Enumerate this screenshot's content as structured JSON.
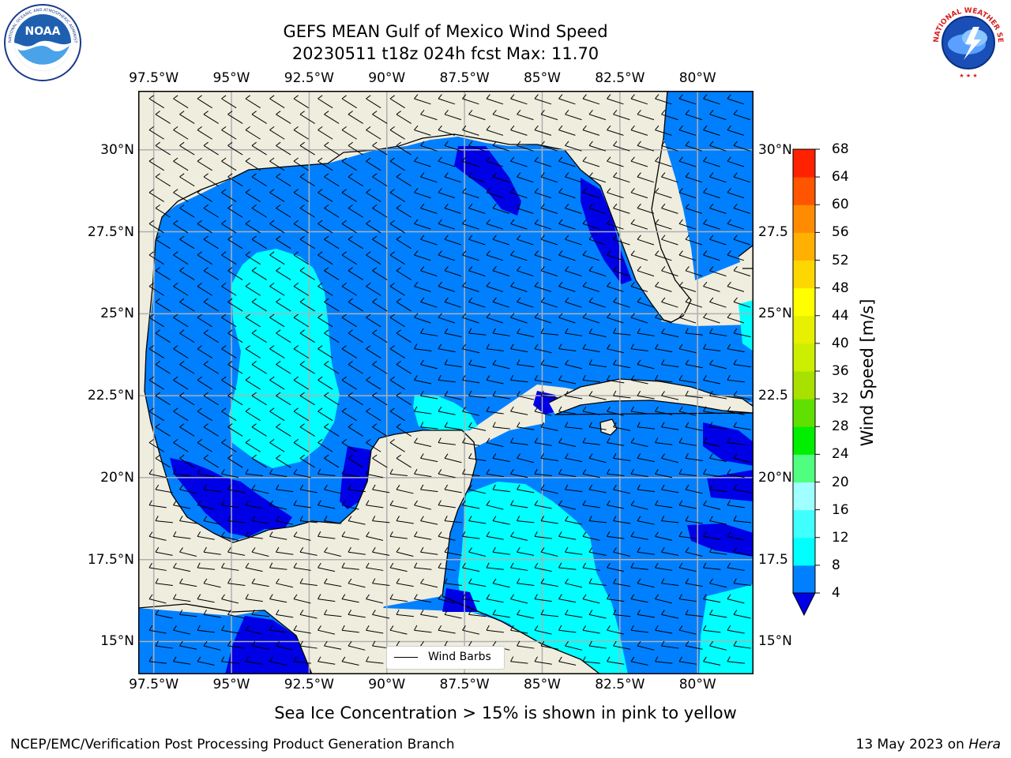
{
  "title": {
    "line1": "GEFS MEAN Gulf of Mexico Wind Speed",
    "line2": "20230511 t18z 024h fcst   Max: 11.70"
  },
  "logos": {
    "left": "noaa-logo",
    "left_text": "NOAA",
    "left_ring_text": "NATIONAL OCEANIC AND ATMOSPHERIC ADMINISTRATION · U.S. DEPARTMENT OF COMMERCE",
    "right": "national-weather-service-logo",
    "right_ring_text": "NATIONAL WEATHER SERVICE"
  },
  "map": {
    "region": "Gulf of Mexico",
    "extent": {
      "lon": [
        -98.0,
        -78.2
      ],
      "lat": [
        14.0,
        31.8
      ]
    },
    "lon_ticks": [
      {
        "lon": -97.5,
        "label": "97.5°W"
      },
      {
        "lon": -95.0,
        "label": "95°W"
      },
      {
        "lon": -92.5,
        "label": "92.5°W"
      },
      {
        "lon": -90.0,
        "label": "90°W"
      },
      {
        "lon": -87.5,
        "label": "87.5°W"
      },
      {
        "lon": -85.0,
        "label": "85°W"
      },
      {
        "lon": -82.5,
        "label": "82.5°W"
      },
      {
        "lon": -80.0,
        "label": "80°W"
      }
    ],
    "lat_ticks_left": [
      {
        "lat": 30.0,
        "label": "30°N"
      },
      {
        "lat": 27.5,
        "label": "27.5°N"
      },
      {
        "lat": 25.0,
        "label": "25°N"
      },
      {
        "lat": 22.5,
        "label": "22.5°N"
      },
      {
        "lat": 20.0,
        "label": "20°N"
      },
      {
        "lat": 17.5,
        "label": "17.5°N"
      },
      {
        "lat": 15.0,
        "label": "15°N"
      }
    ],
    "lat_ticks_right": [
      {
        "lat": 30.0,
        "label": "30°N"
      },
      {
        "lat": 27.5,
        "label": "27.5"
      },
      {
        "lat": 25.0,
        "label": "25°N"
      },
      {
        "lat": 22.5,
        "label": "22.5"
      },
      {
        "lat": 20.0,
        "label": "20°N"
      },
      {
        "lat": 17.5,
        "label": "17.5"
      },
      {
        "lat": 15.0,
        "label": "15°N"
      }
    ],
    "colors": {
      "land": "#efedde",
      "ocean_4_8": "#0080ff",
      "ocean_0_4": "#0000e6",
      "ocean_8_12": "#00ffff",
      "gridline": "#b0b0b0",
      "coast": "#000000"
    },
    "legend_label": "Wind Barbs"
  },
  "colorbar": {
    "title": "Wind Speed [m/s]",
    "levels": [
      4,
      8,
      12,
      16,
      20,
      24,
      28,
      32,
      36,
      40,
      44,
      48,
      52,
      56,
      60,
      64,
      68
    ],
    "colors": [
      "#0080ff",
      "#00ffff",
      "#40ffff",
      "#a0ffff",
      "#50ff80",
      "#00ee00",
      "#60e000",
      "#a8e000",
      "#ccee00",
      "#e6f000",
      "#ffff00",
      "#ffd700",
      "#ffb000",
      "#ff8c00",
      "#ff5500",
      "#ff2200"
    ],
    "under_color": "#0000e6"
  },
  "note": "Sea Ice Concentration > 15% is shown in pink to yellow",
  "footer": {
    "left": "NCEP/EMC/Verification Post Processing Product Generation Branch",
    "right_date": "13 May 2023 on ",
    "right_host": "Hera"
  }
}
